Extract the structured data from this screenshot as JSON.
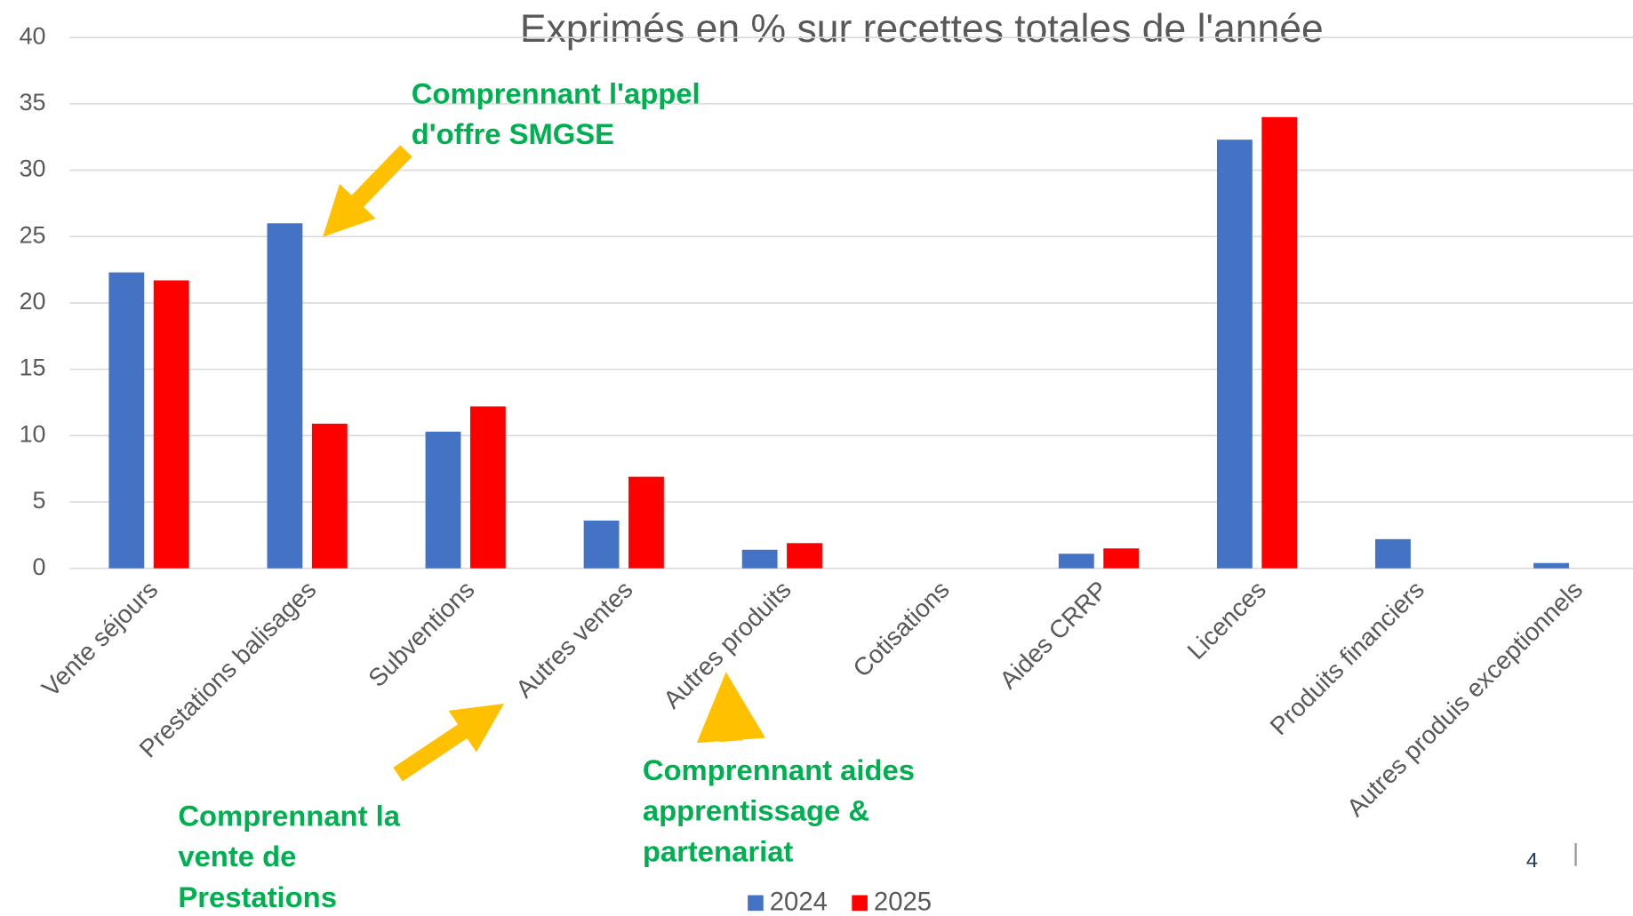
{
  "chart_data": {
    "type": "bar",
    "title": "Exprimés en % sur recettes totales de l'année",
    "categories": [
      "Vente séjours",
      "Prestations balisages",
      "Subventions",
      "Autres ventes",
      "Autres produits",
      "Cotisations",
      "Aides CRRP",
      "Licences",
      "Produits financiers",
      "Autres produis exceptionnels"
    ],
    "series": [
      {
        "name": "2024",
        "color": "#4472c4",
        "values": [
          22.3,
          26,
          10.3,
          3.6,
          1.4,
          0,
          1.1,
          32.3,
          2.2,
          0.4
        ]
      },
      {
        "name": "2025",
        "color": "#ff0000",
        "values": [
          21.7,
          10.9,
          12.2,
          6.9,
          1.9,
          0,
          1.5,
          34,
          0,
          0
        ]
      }
    ],
    "ylim": [
      0,
      40
    ],
    "yticks": [
      0,
      5,
      10,
      15,
      20,
      25,
      30,
      35,
      40
    ],
    "grid": true,
    "legend": "bottom",
    "annotations": [
      {
        "lines": [
          "Comprennant l'appel",
          "d'offre SMGSE"
        ]
      },
      {
        "lines": [
          "Comprennant la",
          "vente de",
          "Prestations"
        ]
      },
      {
        "lines": [
          "Comprennant aides",
          "apprentissage &",
          "partenariat"
        ]
      }
    ],
    "page_number": "4"
  }
}
